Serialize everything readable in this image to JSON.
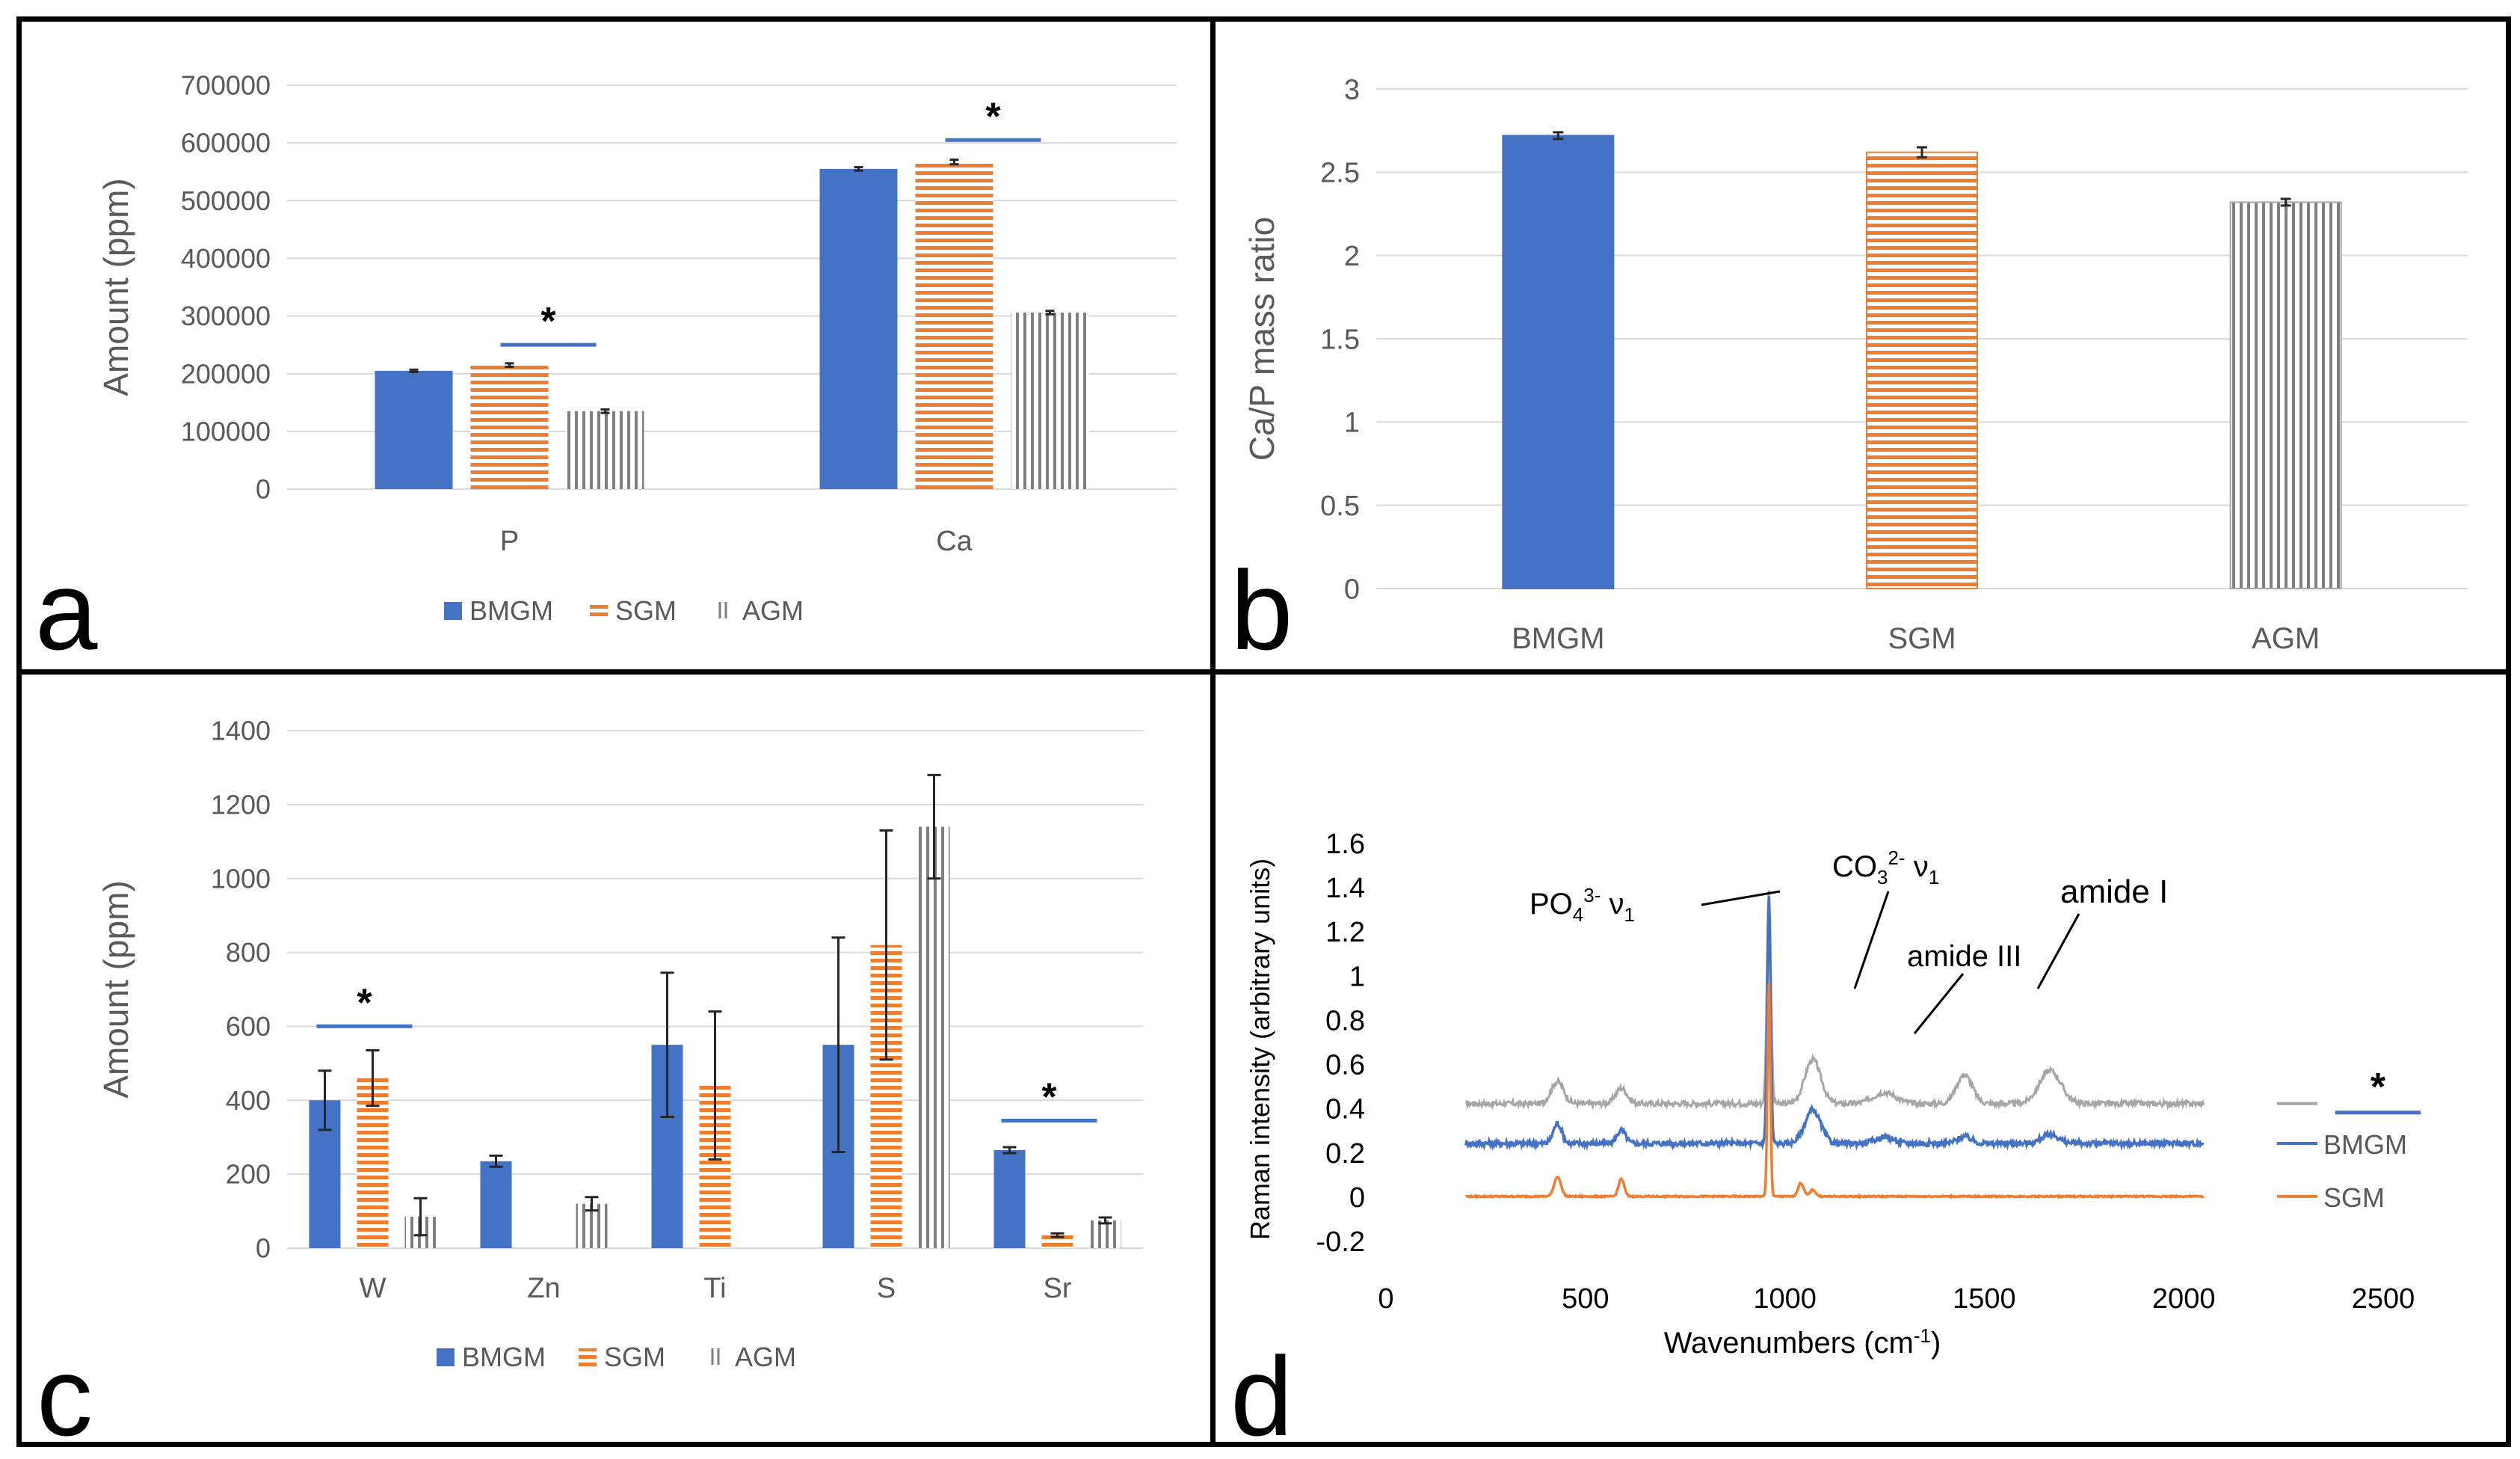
{
  "colors": {
    "bmgm": "#4472c4",
    "sgm": "#ed7d31",
    "agm": "#7f7f7f",
    "agm_line": "#a6a6a6",
    "grid": "#d9d9d9",
    "axis_text": "#595959"
  },
  "chart_data": [
    {
      "panel": "a",
      "type": "bar",
      "title": "",
      "ylabel": "Amount (ppm)",
      "xlabel": "",
      "ylim": [
        0,
        700000
      ],
      "yticks": [
        "0",
        "100000",
        "200000",
        "300000",
        "400000",
        "500000",
        "600000",
        "700000"
      ],
      "categories": [
        "P",
        "Ca"
      ],
      "series": [
        {
          "name": "BMGM",
          "pattern": "solid",
          "values": [
            205000,
            555000
          ],
          "errors": [
            2000,
            3000
          ]
        },
        {
          "name": "SGM",
          "pattern": "horizontal",
          "values": [
            215000,
            567000
          ],
          "errors": [
            3000,
            4000
          ]
        },
        {
          "name": "AGM",
          "pattern": "vertical",
          "values": [
            135000,
            306000
          ],
          "errors": [
            3000,
            3000
          ]
        }
      ],
      "significance": [
        {
          "category": "P",
          "marker": "*",
          "level": 250000
        },
        {
          "category": "Ca",
          "marker": "*",
          "level": 605000
        }
      ],
      "legend_labels": [
        "BMGM",
        "SGM",
        "AGM"
      ],
      "legend": "bottom"
    },
    {
      "panel": "b",
      "type": "bar",
      "title": "",
      "ylabel": "Ca/P mass ratio",
      "xlabel": "",
      "ylim": [
        0,
        3
      ],
      "yticks": [
        "0",
        "0.5",
        "1",
        "1.5",
        "2",
        "2.5",
        "3"
      ],
      "categories": [
        "BMGM",
        "SGM",
        "AGM"
      ],
      "values": [
        2.72,
        2.62,
        2.32
      ],
      "errors": [
        0.02,
        0.03,
        0.02
      ],
      "patterns": [
        "solid",
        "horizontal",
        "vertical"
      ]
    },
    {
      "panel": "c",
      "type": "bar",
      "title": "",
      "ylabel": "Amount (ppm)",
      "xlabel": "",
      "ylim": [
        0,
        1400
      ],
      "yticks": [
        "0",
        "200",
        "400",
        "600",
        "800",
        "1000",
        "1200",
        "1400"
      ],
      "categories": [
        "W",
        "Zn",
        "Ti",
        "S",
        "Sr"
      ],
      "series": [
        {
          "name": "BMGM",
          "pattern": "solid",
          "values": [
            400,
            235,
            550,
            550,
            265
          ],
          "errors": [
            80,
            15,
            195,
            290,
            8
          ]
        },
        {
          "name": "SGM",
          "pattern": "horizontal",
          "values": [
            460,
            null,
            440,
            820,
            35
          ],
          "errors": [
            75,
            null,
            200,
            310,
            5
          ]
        },
        {
          "name": "AGM",
          "pattern": "vertical",
          "values": [
            85,
            120,
            null,
            1140,
            75
          ],
          "errors": [
            50,
            18,
            null,
            140,
            8
          ]
        }
      ],
      "significance": [
        {
          "category": "W",
          "marker": "*",
          "level": 600
        },
        {
          "category": "Sr",
          "marker": "*",
          "level": 345
        }
      ],
      "legend_labels": [
        "BMGM",
        "SGM",
        "AGM"
      ],
      "legend": "bottom"
    },
    {
      "panel": "d",
      "type": "line",
      "title": "",
      "ylabel": "Raman intensity (arbitrary units)",
      "xlabel_main": "Wavenumbers (cm",
      "xlabel_sup": "-1",
      "xlabel_end": ")",
      "xlim": [
        0,
        2500
      ],
      "ylim": [
        -0.2,
        1.6
      ],
      "xticks": [
        "0",
        "500",
        "1000",
        "1500",
        "2000",
        "2500"
      ],
      "yticks": [
        "-0.2",
        "0",
        "0.2",
        "0.4",
        "0.6",
        "0.8",
        "1",
        "1.2",
        "1.4",
        "1.6"
      ],
      "x_range": [
        200,
        2050
      ],
      "series": [
        {
          "name": "*",
          "baseline": 0.42,
          "noise": 0.012,
          "peaks": [
            [
              430,
              0.1,
              22
            ],
            [
              590,
              0.07,
              20
            ],
            [
              960,
              0.96,
              7
            ],
            [
              1070,
              0.2,
              28
            ],
            [
              1250,
              0.05,
              40
            ],
            [
              1450,
              0.13,
              28
            ],
            [
              1665,
              0.15,
              38
            ]
          ]
        },
        {
          "name": "BMGM",
          "baseline": 0.24,
          "noise": 0.012,
          "peaks": [
            [
              430,
              0.09,
              15
            ],
            [
              590,
              0.06,
              15
            ],
            [
              960,
              1.12,
              6
            ],
            [
              1070,
              0.15,
              28
            ],
            [
              1250,
              0.03,
              30
            ],
            [
              1450,
              0.03,
              25
            ],
            [
              1665,
              0.04,
              30
            ]
          ]
        },
        {
          "name": "SGM",
          "baseline": 0.0,
          "noise": 0.003,
          "peaks": [
            [
              430,
              0.09,
              12
            ],
            [
              590,
              0.08,
              10
            ],
            [
              960,
              0.97,
              5
            ],
            [
              1040,
              0.06,
              10
            ],
            [
              1070,
              0.03,
              10
            ]
          ]
        }
      ],
      "annotations": [
        {
          "base": "PO",
          "sub1": "4",
          "sup": "3-",
          "nu": " ν",
          "sub2": "1"
        },
        {
          "base": "CO",
          "sub1": "3",
          "sup": "2-",
          "nu": " ν",
          "sub2": "1"
        },
        {
          "base": "amide III"
        },
        {
          "base": "amide I"
        }
      ],
      "legend_labels": [
        "*",
        "BMGM",
        "SGM"
      ],
      "legend": "right"
    }
  ],
  "panel_letters": [
    "a",
    "b",
    "c",
    "d"
  ]
}
